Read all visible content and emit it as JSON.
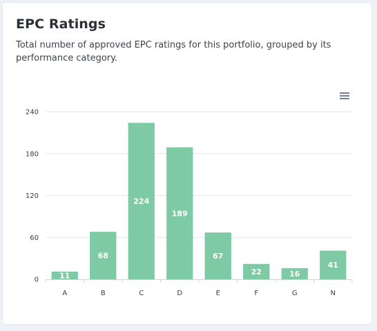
{
  "card": {
    "title": "EPC Ratings",
    "description": "Total number of approved EPC ratings for this portfolio, grouped by its performance category.",
    "menu_icon": "hamburger-menu-icon"
  },
  "colors": {
    "bar": "#7dcaa4",
    "grid": "#e3e6ea",
    "axis": "#d0d4d9",
    "text": "#373d3f"
  },
  "chart_data": {
    "type": "bar",
    "categories": [
      "A",
      "B",
      "C",
      "D",
      "E",
      "F",
      "G",
      "N"
    ],
    "values": [
      11,
      68,
      224,
      189,
      67,
      22,
      16,
      41
    ],
    "data_labels": [
      "11",
      "68",
      "224",
      "189",
      "67",
      "22",
      "16",
      "41"
    ],
    "yticks": [
      0,
      60,
      120,
      180,
      240
    ],
    "ylim": [
      0,
      240
    ],
    "grid": true,
    "legend": "none",
    "title": "",
    "xlabel": "",
    "ylabel": ""
  }
}
